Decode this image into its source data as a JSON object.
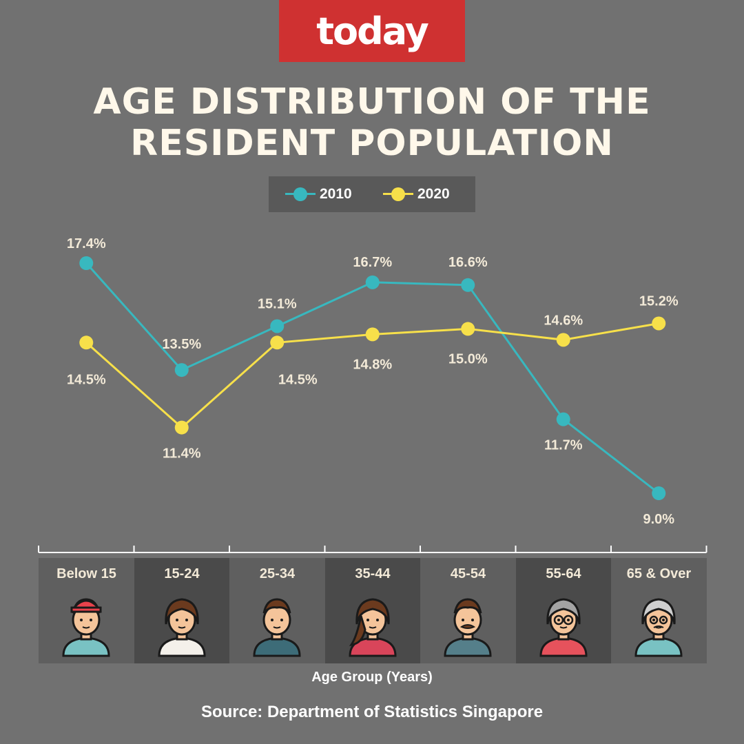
{
  "brand": {
    "logo_text": "today"
  },
  "title_lines": [
    "AGE DISTRIBUTION OF THE",
    "RESIDENT POPULATION"
  ],
  "source": "Source: Department of Statistics Singapore",
  "avatars": [
    "boy-cap-icon",
    "young-woman-icon",
    "young-man-icon",
    "woman-long-hair-icon",
    "man-mustache-icon",
    "older-woman-glasses-icon",
    "elderly-man-icon"
  ],
  "chart_data": {
    "type": "line",
    "categories": [
      "Below 15",
      "15-24",
      "25-34",
      "35-44",
      "45-54",
      "55-64",
      "65 & Over"
    ],
    "xlabel": "Age Group (Years)",
    "ylabel": "",
    "unit": "%",
    "ylim": [
      9.0,
      17.4
    ],
    "grid": false,
    "legend_position": "top-center",
    "series": [
      {
        "name": "2010",
        "color": "#38b8bf",
        "values": [
          17.4,
          13.5,
          15.1,
          16.7,
          16.6,
          11.7,
          9.0
        ],
        "labels": [
          "17.4%",
          "13.5%",
          "15.1%",
          "16.7%",
          "16.6%",
          "11.7%",
          "9.0%"
        ]
      },
      {
        "name": "2020",
        "color": "#f7e04a",
        "values": [
          14.5,
          11.4,
          14.5,
          14.8,
          15.0,
          14.6,
          15.2
        ],
        "labels": [
          "14.5%",
          "11.4%",
          "14.5%",
          "14.8%",
          "15.0%",
          "14.6%",
          "15.2%"
        ]
      }
    ]
  }
}
